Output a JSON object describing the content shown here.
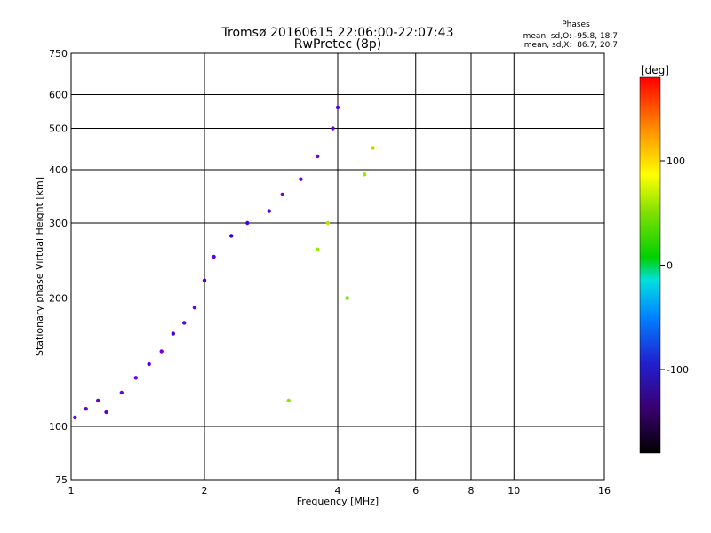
{
  "chart_data": {
    "type": "scatter",
    "title": "Tromsø 20160615 22:06:00-22:07:43",
    "subtitle": "RwPretec (8p)",
    "xlabel": "Frequency [MHz]",
    "ylabel": "Stationary phase Virtual Height [km]",
    "xscale": "log",
    "yscale": "log",
    "xlim": [
      1,
      16
    ],
    "ylim": [
      75,
      750
    ],
    "xticks": [
      1,
      2,
      4,
      6,
      8,
      10,
      16
    ],
    "yticks": [
      75,
      100,
      200,
      300,
      400,
      500,
      600,
      750
    ],
    "grid": true,
    "stats": {
      "title": "Phases",
      "line_o": "mean, sd,O: -95.8, 18.7",
      "line_x": "mean, sd,X:  86.7, 20.7"
    },
    "colorbar": {
      "label": "[deg]",
      "range": [
        -180,
        180
      ],
      "ticks": [
        100,
        0,
        -100
      ],
      "position": "right"
    },
    "series": [
      {
        "values": [
          {
            "x": 1.02,
            "y": 105,
            "phase": -110
          },
          {
            "x": 1.08,
            "y": 110,
            "phase": -120
          },
          {
            "x": 1.15,
            "y": 115,
            "phase": -115
          },
          {
            "x": 1.2,
            "y": 108,
            "phase": -125
          },
          {
            "x": 1.3,
            "y": 120,
            "phase": -110
          },
          {
            "x": 1.4,
            "y": 130,
            "phase": -105
          },
          {
            "x": 1.5,
            "y": 140,
            "phase": -100
          },
          {
            "x": 1.6,
            "y": 150,
            "phase": -110
          },
          {
            "x": 1.7,
            "y": 165,
            "phase": -95
          },
          {
            "x": 1.8,
            "y": 175,
            "phase": -100
          },
          {
            "x": 1.9,
            "y": 190,
            "phase": -105
          },
          {
            "x": 2.0,
            "y": 220,
            "phase": -95
          },
          {
            "x": 2.1,
            "y": 250,
            "phase": -100
          },
          {
            "x": 2.3,
            "y": 280,
            "phase": -90
          },
          {
            "x": 2.5,
            "y": 300,
            "phase": -95
          },
          {
            "x": 2.8,
            "y": 320,
            "phase": -100
          },
          {
            "x": 3.0,
            "y": 350,
            "phase": -110
          },
          {
            "x": 3.3,
            "y": 380,
            "phase": -120
          },
          {
            "x": 3.6,
            "y": 430,
            "phase": -110
          },
          {
            "x": 3.9,
            "y": 500,
            "phase": -105
          },
          {
            "x": 4.0,
            "y": 560,
            "phase": -100
          },
          {
            "x": 3.1,
            "y": 115,
            "phase": 90
          },
          {
            "x": 3.6,
            "y": 260,
            "phase": 95
          },
          {
            "x": 3.8,
            "y": 300,
            "phase": 100
          },
          {
            "x": 4.2,
            "y": 200,
            "phase": 85
          },
          {
            "x": 4.6,
            "y": 390,
            "phase": 95
          },
          {
            "x": 4.8,
            "y": 450,
            "phase": 100
          }
        ]
      }
    ]
  }
}
